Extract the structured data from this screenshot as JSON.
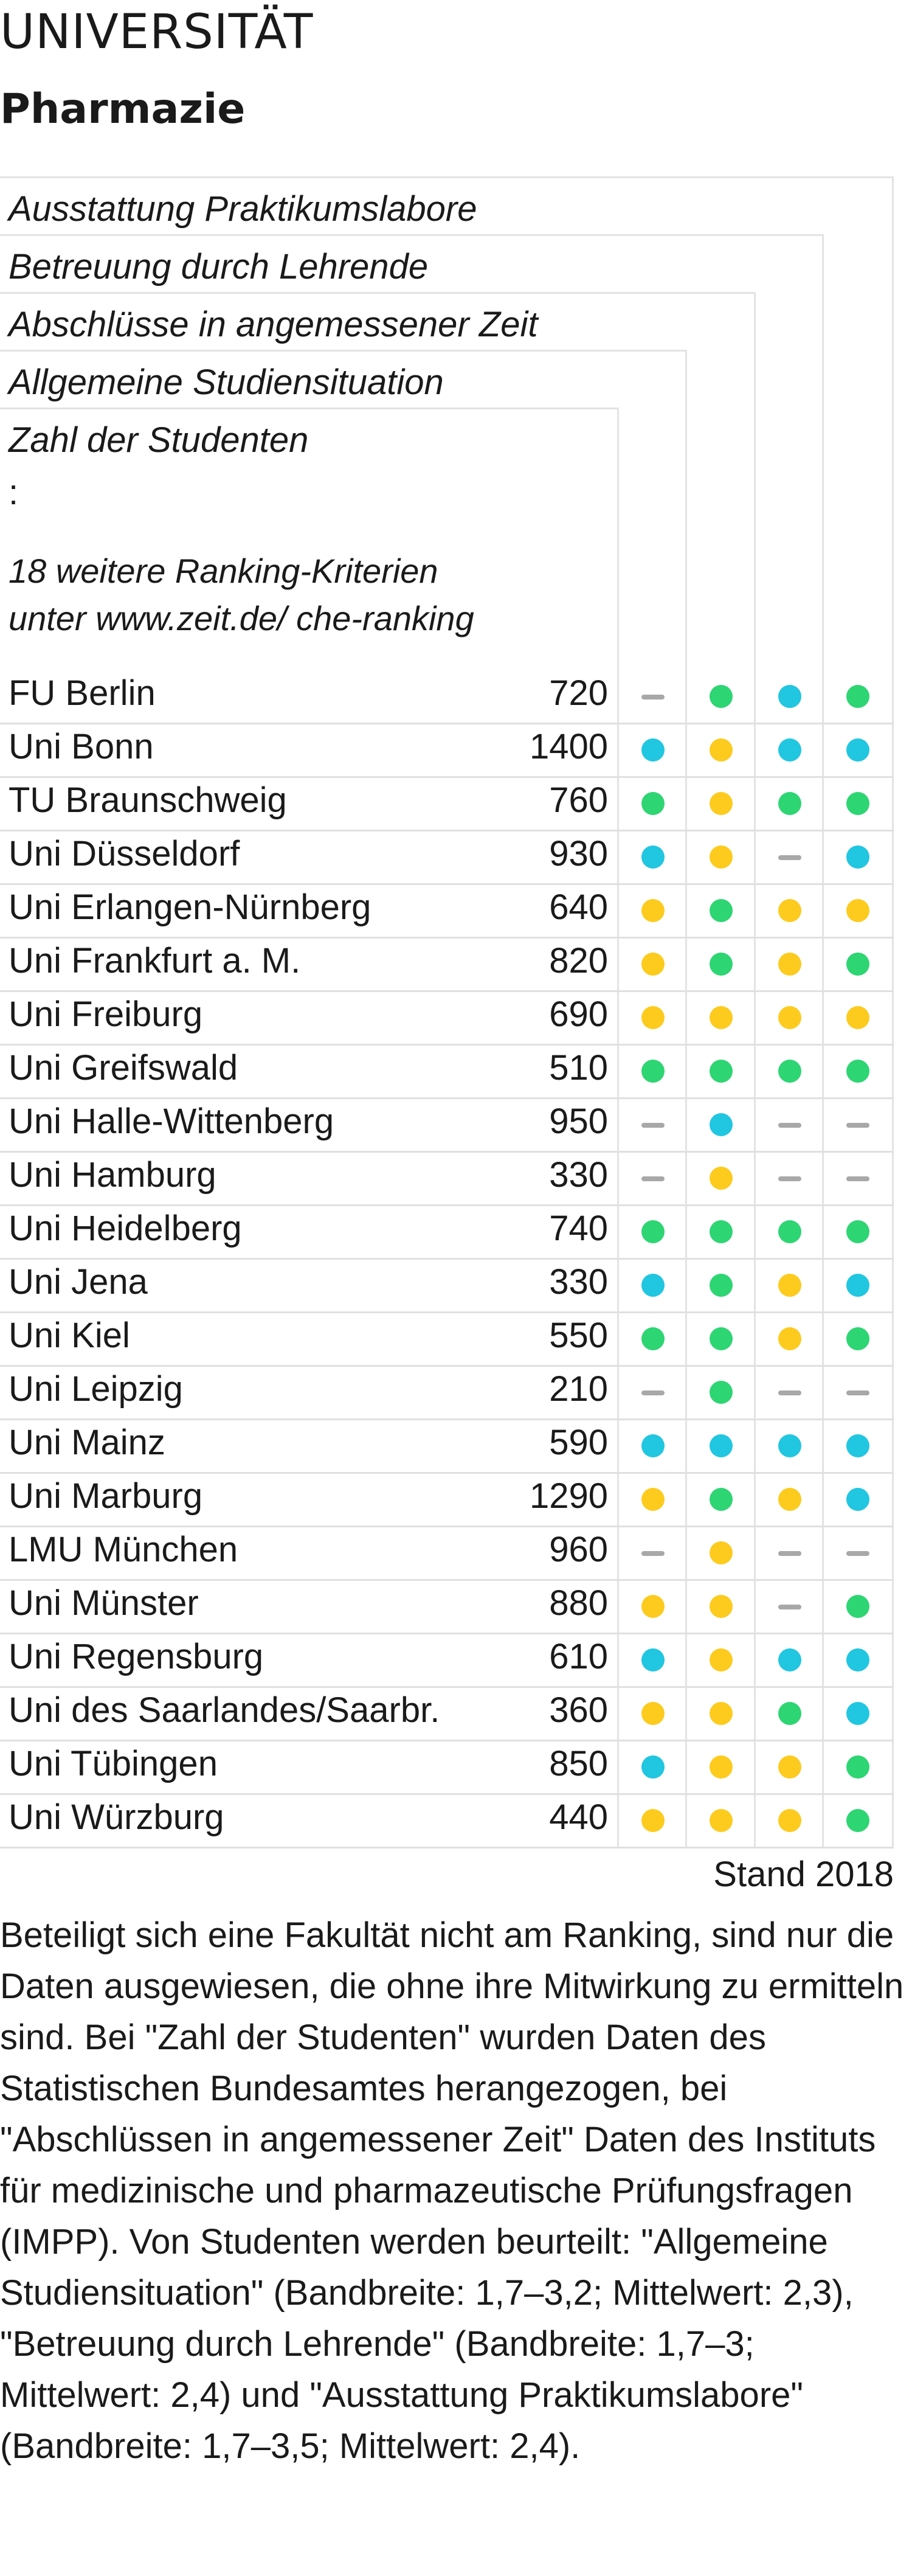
{
  "header": {
    "kicker": "UNIVERSITÄT",
    "title": "Pharmazie"
  },
  "chart_data": {
    "type": "table",
    "columns": [
      "Ausstattung Praktikumslabore",
      "Betreuung durch Lehrende",
      "Abschlüsse in angemessener Zeit",
      "Allgemeine Studiensituation",
      "Zahl der Studenten"
    ],
    "ellipsis": ":",
    "more_criteria": [
      "18 weitere Ranking-Kriterien",
      "unter www.zeit.de/ che-ranking"
    ],
    "indicator_order": [
      "Allgemeine Studiensituation",
      "Abschlüsse in angemessener Zeit",
      "Betreuung durch Lehrende",
      "Ausstattung Praktikumslabore"
    ],
    "rows": [
      {
        "name": "FU Berlin",
        "students": "720",
        "ratings": [
          "none",
          "green",
          "blue",
          "green"
        ]
      },
      {
        "name": "Uni Bonn",
        "students": "1400",
        "ratings": [
          "blue",
          "yellow",
          "blue",
          "blue"
        ]
      },
      {
        "name": "TU Braunschweig",
        "students": "760",
        "ratings": [
          "green",
          "yellow",
          "green",
          "green"
        ]
      },
      {
        "name": "Uni Düsseldorf",
        "students": "930",
        "ratings": [
          "blue",
          "yellow",
          "none",
          "blue"
        ]
      },
      {
        "name": "Uni Erlangen-Nürnberg",
        "students": "640",
        "ratings": [
          "yellow",
          "green",
          "yellow",
          "yellow"
        ]
      },
      {
        "name": "Uni Frankfurt a. M.",
        "students": "820",
        "ratings": [
          "yellow",
          "green",
          "yellow",
          "green"
        ]
      },
      {
        "name": "Uni Freiburg",
        "students": "690",
        "ratings": [
          "yellow",
          "yellow",
          "yellow",
          "yellow"
        ]
      },
      {
        "name": "Uni Greifswald",
        "students": "510",
        "ratings": [
          "green",
          "green",
          "green",
          "green"
        ]
      },
      {
        "name": "Uni Halle-Wittenberg",
        "students": "950",
        "ratings": [
          "none",
          "blue",
          "none",
          "none"
        ]
      },
      {
        "name": "Uni Hamburg",
        "students": "330",
        "ratings": [
          "none",
          "yellow",
          "none",
          "none"
        ]
      },
      {
        "name": "Uni Heidelberg",
        "students": "740",
        "ratings": [
          "green",
          "green",
          "green",
          "green"
        ]
      },
      {
        "name": "Uni Jena",
        "students": "330",
        "ratings": [
          "blue",
          "green",
          "yellow",
          "blue"
        ]
      },
      {
        "name": "Uni Kiel",
        "students": "550",
        "ratings": [
          "green",
          "green",
          "yellow",
          "green"
        ]
      },
      {
        "name": "Uni Leipzig",
        "students": "210",
        "ratings": [
          "none",
          "green",
          "none",
          "none"
        ]
      },
      {
        "name": "Uni Mainz",
        "students": "590",
        "ratings": [
          "blue",
          "blue",
          "blue",
          "blue"
        ]
      },
      {
        "name": "Uni Marburg",
        "students": "1290",
        "ratings": [
          "yellow",
          "green",
          "yellow",
          "blue"
        ]
      },
      {
        "name": "LMU München",
        "students": "960",
        "ratings": [
          "none",
          "yellow",
          "none",
          "none"
        ]
      },
      {
        "name": "Uni Münster",
        "students": "880",
        "ratings": [
          "yellow",
          "yellow",
          "none",
          "green"
        ]
      },
      {
        "name": "Uni Regensburg",
        "students": "610",
        "ratings": [
          "blue",
          "yellow",
          "blue",
          "blue"
        ]
      },
      {
        "name": "Uni des Saarlandes/Saarbr.",
        "students": "360",
        "ratings": [
          "yellow",
          "yellow",
          "green",
          "blue"
        ]
      },
      {
        "name": "Uni Tübingen",
        "students": "850",
        "ratings": [
          "blue",
          "yellow",
          "yellow",
          "green"
        ]
      },
      {
        "name": "Uni Würzburg",
        "students": "440",
        "ratings": [
          "yellow",
          "yellow",
          "yellow",
          "green"
        ]
      }
    ],
    "colors": {
      "green": "#2ed573",
      "yellow": "#fccb1e",
      "blue": "#21c6e0",
      "none": "#a8a8a8"
    }
  },
  "footer": {
    "stand": "Stand 2018",
    "note": "Beteiligt sich eine Fakultät nicht am Ranking, sind nur die Daten ausgewiesen, die ohne ihre Mitwirkung zu ermitteln sind. Bei \"Zahl der Studenten\" wurden Daten des Statistischen Bundesamtes herangezogen, bei \"Abschlüssen in angemessener Zeit\" Daten des Instituts für medizinische und pharmazeutische Prüfungsfragen (IMPP). Von Studenten werden beurteilt: \"Allgemeine Studiensituation\" (Bandbreite: 1,7–3,2; Mittelwert: 2,3), \"Betreuung durch Lehrende\" (Bandbreite: 1,7–3; Mittelwert: 2,4) und \"Ausstattung Praktikumslabore\" (Bandbreite: 1,7–3,5; Mittelwert: 2,4)."
  }
}
